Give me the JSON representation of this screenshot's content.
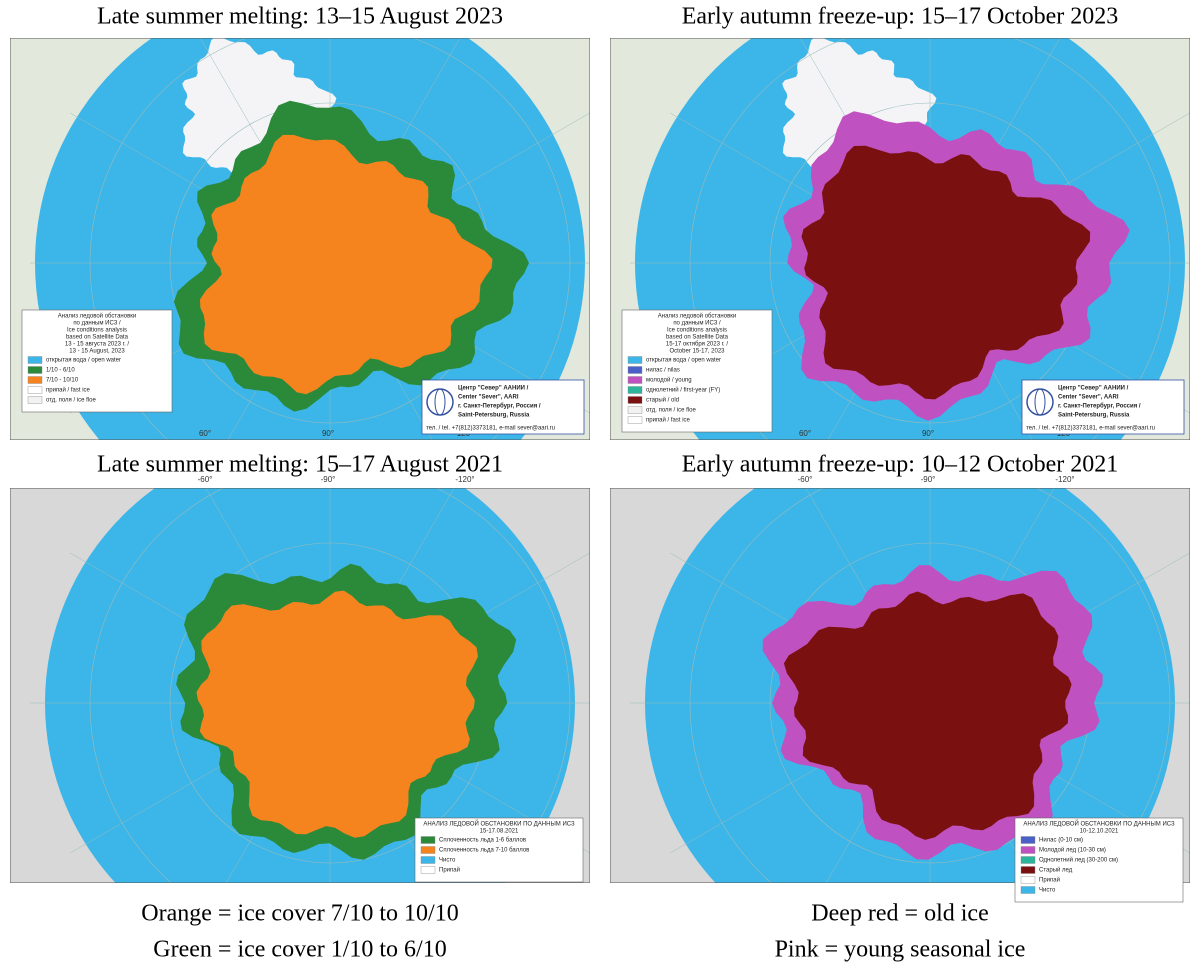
{
  "panels": [
    {
      "title": "Late summer melting: 13–15 August 2023",
      "degrees": [
        "60°",
        "90°",
        "120°"
      ],
      "legend": {
        "lines": [
          "Анализ ледовой обстановки",
          "по данным ИСЗ /",
          "Ice conditions analysis",
          "based on Satellite Data",
          "13 - 15 августа 2023 г. /",
          "13 - 15 August, 2023"
        ],
        "items": [
          {
            "label": "открытая вода / open water",
            "color": "#3cb6e8"
          },
          {
            "label": "1/10 - 6/10",
            "color": "#2a8a3a"
          },
          {
            "label": "7/10 - 10/10",
            "color": "#f5841f"
          },
          {
            "label": "припай / fast ice",
            "color": "#ffffff"
          },
          {
            "label": "отд. поля / ice floe",
            "color": "#f2f2f2"
          }
        ]
      },
      "stamp": [
        "Центр \"Север\" ААНИИ /",
        "Center \"Sever\", AARI",
        "г. Санкт-Петербург, Россия /",
        "Saint-Petersburg, Russia"
      ],
      "contact": "тел. / tel. +7(812)3373181, e-mail sever@aari.ru"
    },
    {
      "title": "Early autumn freeze-up: 15–17 October 2023",
      "degrees": [
        "60°",
        "90°",
        "120°"
      ],
      "legend": {
        "lines": [
          "Анализ ледовой обстановки",
          "по данным ИСЗ /",
          "Ice conditions analysis",
          "based on Satellite Data",
          "15-17 октября 2023 г. /",
          "October 15-17, 2023"
        ],
        "items": [
          {
            "label": "открытая вода / open water",
            "color": "#3cb6e8"
          },
          {
            "label": "нилас / nilas",
            "color": "#4a5fc8"
          },
          {
            "label": "молодой / young",
            "color": "#c051c0"
          },
          {
            "label": "однолетний / first-year (FY)",
            "color": "#2bb59a"
          },
          {
            "label": "старый / old",
            "color": "#7b1010"
          },
          {
            "label": "отд. поля / ice floe",
            "color": "#f2f2f2"
          },
          {
            "label": "припай / fast ice",
            "color": "#ffffff"
          }
        ]
      },
      "stamp": [
        "Центр \"Север\" ААНИИ /",
        "Center \"Sever\", AARI",
        "г. Санкт-Петербург, Россия /",
        "Saint-Petersburg, Russia"
      ],
      "contact": "тел. / tel. +7(812)3373181, e-mail sever@aari.ru"
    },
    {
      "title": "Late summer melting: 15–17 August 2021",
      "degrees": [
        "-60°",
        "-90°",
        "-120°"
      ],
      "legend": {
        "lines": [
          "АНАЛИЗ ЛЕДОВОЙ ОБСТАНОВКИ ПО ДАННЫМ ИСЗ",
          "15-17.08.2021"
        ],
        "items": [
          {
            "label": "Сплоченность льда 1-6 баллов",
            "color": "#2a8a3a"
          },
          {
            "label": "Сплоченность льда 7-10 баллов",
            "color": "#f5841f"
          },
          {
            "label": "Чисто",
            "color": "#3cb6e8"
          },
          {
            "label": "Припай",
            "color": "#ffffff"
          }
        ]
      }
    },
    {
      "title": "Early autumn freeze-up: 10–12 October 2021",
      "degrees": [
        "-60°",
        "-90°",
        "-120°"
      ],
      "legend": {
        "lines": [
          "АНАЛИЗ ЛЕДОВОЙ ОБСТАНОВКИ ПО ДАННЫМ ИСЗ",
          "10-12.10.2021"
        ],
        "items": [
          {
            "label": "Нилас (0-10 см)",
            "color": "#4a5fc8"
          },
          {
            "label": "Молодой лед (10-30 см)",
            "color": "#c051c0"
          },
          {
            "label": "Однолетний лед (30-200 см)",
            "color": "#2bb59a"
          },
          {
            "label": "Старый лед",
            "color": "#7b1010"
          },
          {
            "label": "Припай",
            "color": "#ffffff"
          },
          {
            "label": "Чисто",
            "color": "#3cb6e8"
          }
        ]
      }
    }
  ],
  "captions": [
    [
      "Orange = ice cover 7/10 to 10/10",
      "Green = ice cover 1/10 to 6/10"
    ],
    [
      "Deep red = old ice",
      "Pink = young seasonal ice"
    ]
  ]
}
